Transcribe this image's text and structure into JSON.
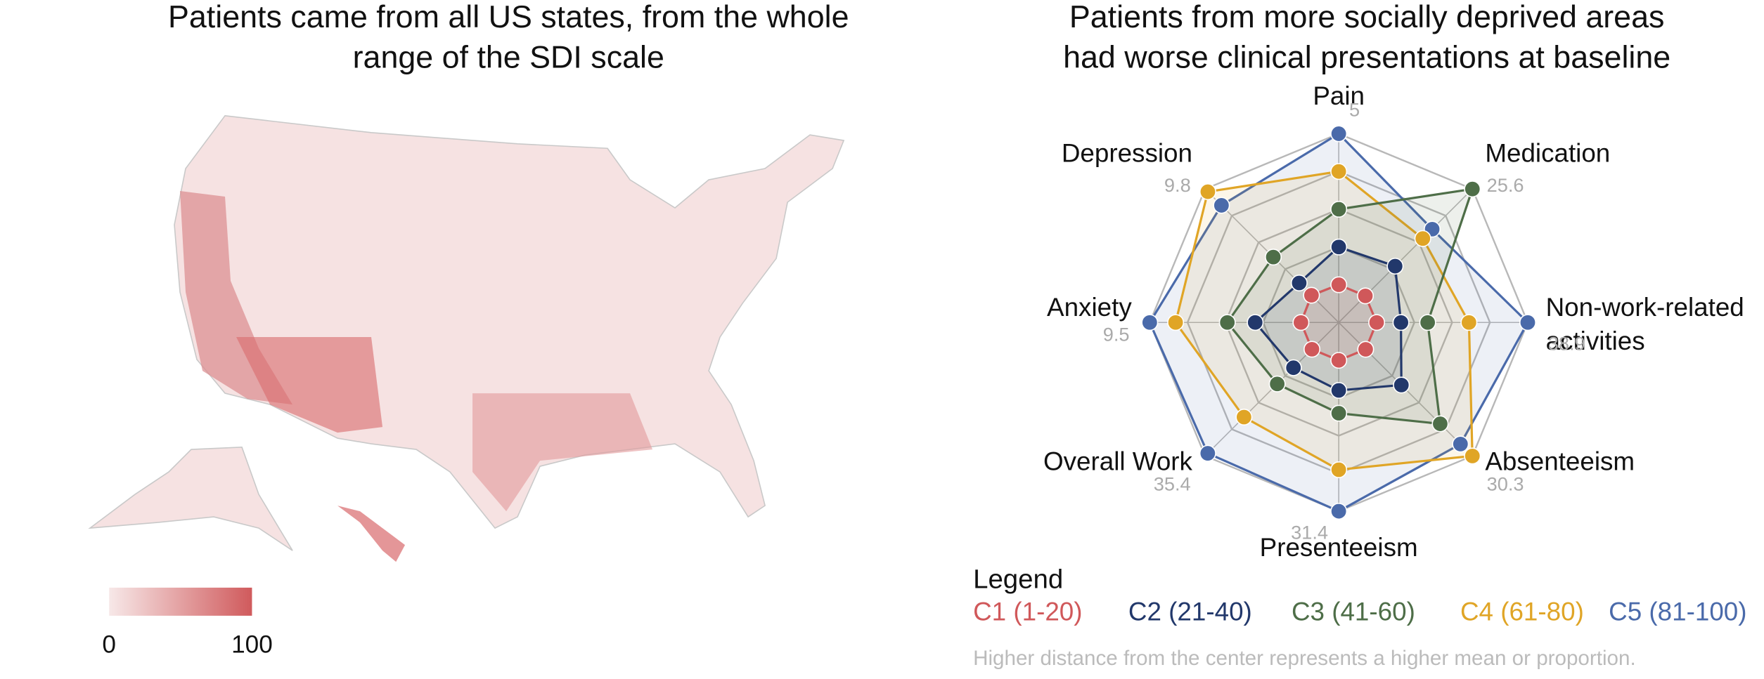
{
  "chart_data": [
    {
      "type": "choropleth",
      "title": [
        "Patients came from all US states, from the whole",
        "range of the SDI scale"
      ],
      "colorbar": {
        "lim": [
          0,
          100
        ],
        "ticks": [
          0,
          100
        ],
        "colors": [
          "#f7e8e8",
          "#d05a5c"
        ]
      }
    },
    {
      "type": "radar",
      "title": [
        "Patients from more socially deprived areas",
        "had worse clinical presentations at baseline"
      ],
      "axes": [
        {
          "label": "Pain",
          "max": 5
        },
        {
          "label": "Medication",
          "max": 25.6
        },
        {
          "label": "Non-work-related activities",
          "max": 38.9
        },
        {
          "label": "Absenteeism",
          "max": 30.3
        },
        {
          "label": "Presenteeism",
          "max": 31.4
        },
        {
          "label": "Overall Work",
          "max": 35.4
        },
        {
          "label": "Anxiety",
          "max": 9.5
        },
        {
          "label": "Depression",
          "max": 9.8
        }
      ],
      "legend_title": "Legend",
      "series": [
        {
          "name": "C1 (1-20)",
          "color": "#d0585a",
          "values": [
            1,
            5.1,
            7.8,
            6.1,
            6.3,
            7.1,
            1.9,
            2.0
          ]
        },
        {
          "name": "C2 (21-40)",
          "color": "#22386b",
          "values": [
            2,
            10.8,
            12.8,
            14.2,
            11.3,
            12.0,
            4.2,
            2.9
          ]
        },
        {
          "name": "C3 (41-60)",
          "color": "#4e6e48",
          "values": [
            3,
            25.6,
            18.3,
            23.0,
            15.1,
            16.3,
            5.6,
            4.8
          ]
        },
        {
          "name": "C4 (61-80)",
          "color": "#e0a526",
          "values": [
            4,
            16.1,
            26.8,
            30.3,
            24.5,
            25.1,
            8.2,
            9.6
          ]
        },
        {
          "name": "C5 (81-100)",
          "color": "#4a6aaa",
          "values": [
            5,
            17.9,
            38.9,
            27.6,
            31.4,
            34.7,
            9.5,
            8.6
          ]
        }
      ],
      "note": "Higher distance from the center represents a higher mean or proportion."
    }
  ]
}
